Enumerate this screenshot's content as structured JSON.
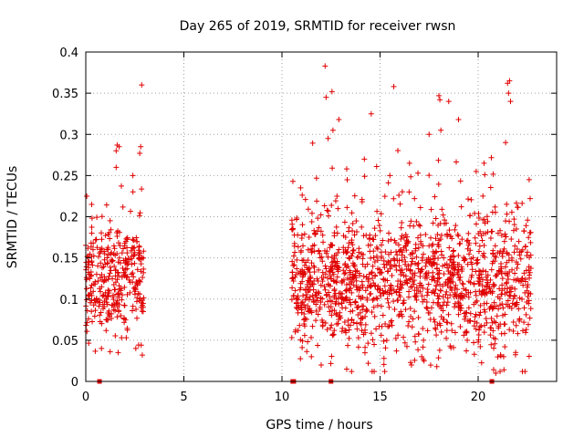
{
  "chart_data": {
    "type": "scatter",
    "title": "Day 265 of 2019, SRMTID for receiver rwsn",
    "xlabel": "GPS time / hours",
    "ylabel": "SRMTID / TECUs",
    "xlim": [
      0,
      24
    ],
    "ylim": [
      0,
      0.4
    ],
    "x_ticks": [
      0,
      5,
      10,
      15,
      20
    ],
    "x_tick_labels": [
      "0",
      "5",
      "10",
      "15",
      "20"
    ],
    "y_ticks": [
      0,
      0.05,
      0.1,
      0.15,
      0.2,
      0.25,
      0.3,
      0.35,
      0.4
    ],
    "y_tick_labels": [
      "0",
      "0.05",
      "0.1",
      "0.15",
      "0.2",
      "0.25",
      "0.3",
      "0.35",
      "0.4"
    ],
    "grid": true,
    "marker": "plus",
    "series": [
      {
        "name": "SRMTID",
        "color": "#e00000",
        "clusters": [
          {
            "x_start": 0.0,
            "x_end": 2.95,
            "count": 340,
            "y_mean": 0.125,
            "y_sd": 0.035,
            "y_min": 0.032,
            "y_max": 0.29,
            "seed": 11
          },
          {
            "x_start": 10.5,
            "x_end": 22.7,
            "count": 1450,
            "y_mean": 0.12,
            "y_sd": 0.04,
            "y_min": 0.012,
            "y_max": 0.3,
            "seed": 23
          }
        ],
        "points": [
          [
            2.85,
            0.36
          ],
          [
            12.2,
            0.383
          ],
          [
            12.55,
            0.352
          ],
          [
            15.7,
            0.358
          ],
          [
            21.6,
            0.365
          ],
          [
            21.5,
            0.362
          ],
          [
            21.65,
            0.34
          ],
          [
            21.55,
            0.35
          ],
          [
            14.55,
            0.325
          ],
          [
            18.0,
            0.347
          ],
          [
            18.05,
            0.342
          ],
          [
            18.5,
            0.34
          ],
          [
            12.9,
            0.318
          ],
          [
            12.25,
            0.345
          ],
          [
            19.0,
            0.318
          ],
          [
            1.6,
            0.287
          ],
          [
            1.7,
            0.285
          ],
          [
            1.55,
            0.28
          ],
          [
            2.8,
            0.285
          ],
          [
            2.75,
            0.277
          ],
          [
            0.05,
            0.225
          ],
          [
            0.3,
            0.215
          ],
          [
            1.55,
            0.26
          ],
          [
            2.4,
            0.25
          ],
          [
            10.95,
            0.235
          ],
          [
            13.3,
            0.258
          ],
          [
            14.2,
            0.27
          ],
          [
            16.5,
            0.265
          ],
          [
            20.3,
            0.265
          ],
          [
            22.6,
            0.245
          ],
          [
            22.65,
            0.222
          ],
          [
            17.5,
            0.3
          ],
          [
            18.1,
            0.305
          ],
          [
            12.35,
            0.295
          ],
          [
            12.6,
            0.305
          ],
          [
            21.4,
            0.29
          ],
          [
            15.5,
            0.25
          ],
          [
            19.9,
            0.255
          ],
          [
            0.8,
            0.04
          ],
          [
            1.65,
            0.035
          ],
          [
            2.55,
            0.04
          ],
          [
            14.7,
            0.012
          ],
          [
            13.3,
            0.015
          ],
          [
            12.0,
            0.02
          ],
          [
            16.6,
            0.02
          ],
          [
            20.9,
            0.01
          ],
          [
            21.3,
            0.03
          ],
          [
            14.4,
            0.022
          ],
          [
            11.5,
            0.03
          ],
          [
            15.2,
            0.028
          ]
        ]
      }
    ],
    "baseline_markers": [
      0.7,
      10.55,
      10.6,
      12.5,
      20.7
    ]
  }
}
